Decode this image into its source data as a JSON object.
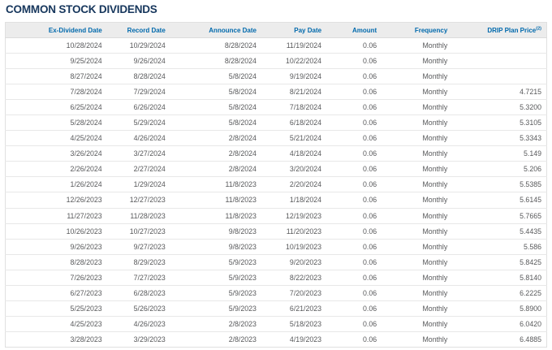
{
  "page": {
    "title": "COMMON STOCK DIVIDENDS"
  },
  "colors": {
    "title_navy": "#16365c",
    "header_blue": "#0069ac",
    "header_background": "#ececec",
    "body_text_gray": "#58595b",
    "row_border": "#e8e8e8",
    "table_border": "#e0e0e0"
  },
  "table": {
    "columns": [
      "Ex-Dividend Date",
      "Record Date",
      "Announce Date",
      "Pay Date",
      "Amount",
      "Frequency",
      "DRIP Plan Price"
    ],
    "footnote_marker": "(2)",
    "rows": [
      [
        "10/28/2024",
        "10/29/2024",
        "8/28/2024",
        "11/19/2024",
        "0.06",
        "Monthly",
        ""
      ],
      [
        "9/25/2024",
        "9/26/2024",
        "8/28/2024",
        "10/22/2024",
        "0.06",
        "Monthly",
        ""
      ],
      [
        "8/27/2024",
        "8/28/2024",
        "5/8/2024",
        "9/19/2024",
        "0.06",
        "Monthly",
        ""
      ],
      [
        "7/28/2024",
        "7/29/2024",
        "5/8/2024",
        "8/21/2024",
        "0.06",
        "Monthly",
        "4.7215"
      ],
      [
        "6/25/2024",
        "6/26/2024",
        "5/8/2024",
        "7/18/2024",
        "0.06",
        "Monthly",
        "5.3200"
      ],
      [
        "5/28/2024",
        "5/29/2024",
        "5/8/2024",
        "6/18/2024",
        "0.06",
        "Monthly",
        "5.3105"
      ],
      [
        "4/25/2024",
        "4/26/2024",
        "2/8/2024",
        "5/21/2024",
        "0.06",
        "Monthly",
        "5.3343"
      ],
      [
        "3/26/2024",
        "3/27/2024",
        "2/8/2024",
        "4/18/2024",
        "0.06",
        "Monthly",
        "5.149"
      ],
      [
        "2/26/2024",
        "2/27/2024",
        "2/8/2024",
        "3/20/2024",
        "0.06",
        "Monthly",
        "5.206"
      ],
      [
        "1/26/2024",
        "1/29/2024",
        "11/8/2023",
        "2/20/2024",
        "0.06",
        "Monthly",
        "5.5385"
      ],
      [
        "12/26/2023",
        "12/27/2023",
        "11/8/2023",
        "1/18/2024",
        "0.06",
        "Monthly",
        "5.6145"
      ],
      [
        "11/27/2023",
        "11/28/2023",
        "11/8/2023",
        "12/19/2023",
        "0.06",
        "Monthly",
        "5.7665"
      ],
      [
        "10/26/2023",
        "10/27/2023",
        "9/8/2023",
        "11/20/2023",
        "0.06",
        "Monthly",
        "5.4435"
      ],
      [
        "9/26/2023",
        "9/27/2023",
        "9/8/2023",
        "10/19/2023",
        "0.06",
        "Monthly",
        "5.586"
      ],
      [
        "8/28/2023",
        "8/29/2023",
        "5/9/2023",
        "9/20/2023",
        "0.06",
        "Monthly",
        "5.8425"
      ],
      [
        "7/26/2023",
        "7/27/2023",
        "5/9/2023",
        "8/22/2023",
        "0.06",
        "Monthly",
        "5.8140"
      ],
      [
        "6/27/2023",
        "6/28/2023",
        "5/9/2023",
        "7/20/2023",
        "0.06",
        "Monthly",
        "6.2225"
      ],
      [
        "5/25/2023",
        "5/26/2023",
        "5/9/2023",
        "6/21/2023",
        "0.06",
        "Monthly",
        "5.8900"
      ],
      [
        "4/25/2023",
        "4/26/2023",
        "2/8/2023",
        "5/18/2023",
        "0.06",
        "Monthly",
        "6.0420"
      ],
      [
        "3/28/2023",
        "3/29/2023",
        "2/8/2023",
        "4/19/2023",
        "0.06",
        "Monthly",
        "6.4885"
      ]
    ],
    "column_keys": [
      "ex_dividend_date",
      "record_date",
      "announce_date",
      "pay_date",
      "amount",
      "frequency",
      "drip_plan_price"
    ]
  }
}
